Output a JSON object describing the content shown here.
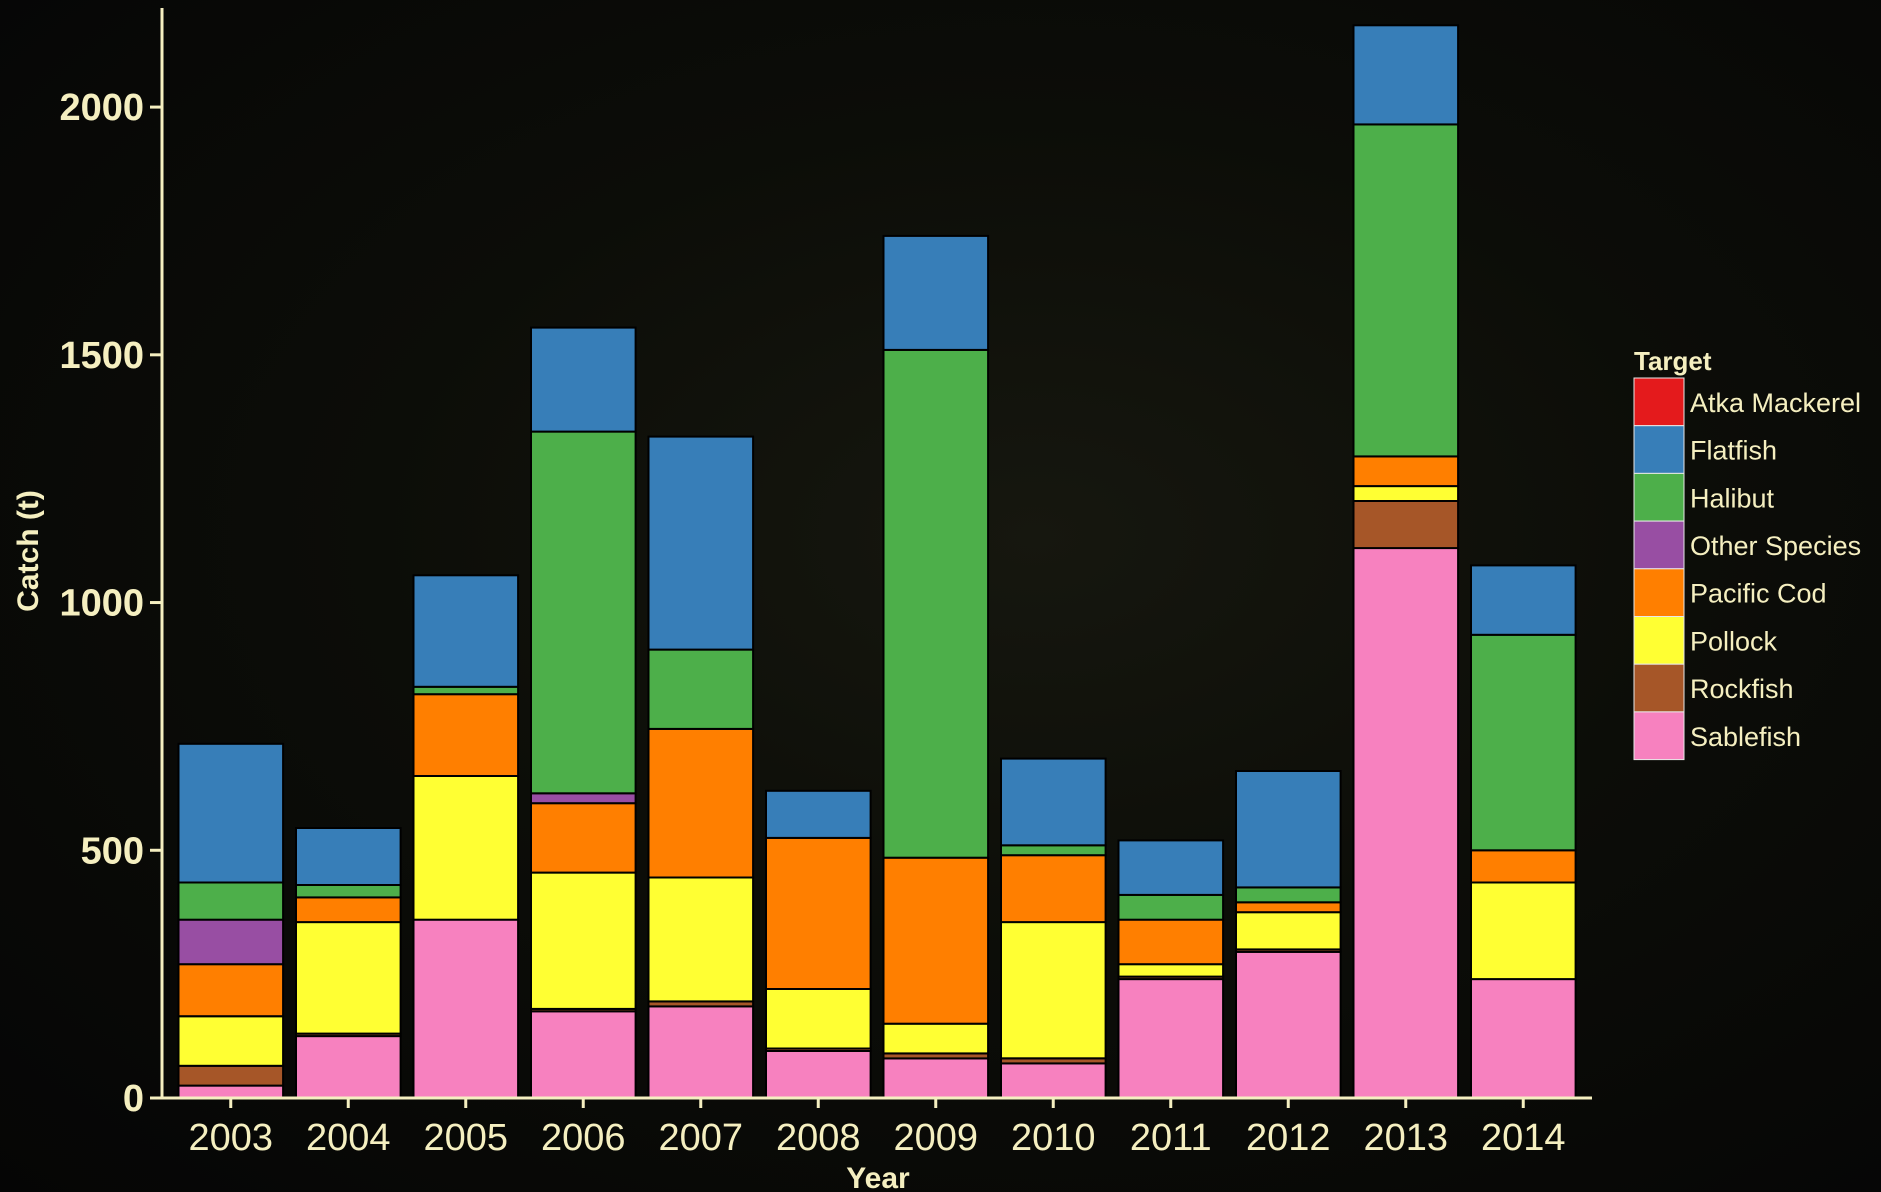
{
  "chart_data": {
    "type": "bar",
    "stacked": true,
    "title": "",
    "xlabel": "Year",
    "ylabel": "Catch (t)",
    "ylim": [
      0,
      2200
    ],
    "yticks": [
      0,
      500,
      1000,
      1500,
      2000
    ],
    "categories": [
      "2003",
      "2004",
      "2005",
      "2006",
      "2007",
      "2008",
      "2009",
      "2010",
      "2011",
      "2012",
      "2013",
      "2014"
    ],
    "legend": {
      "title": "Target",
      "position": "right"
    },
    "series": [
      {
        "name": "Sablefish",
        "color": "#f781bf",
        "values": [
          25,
          125,
          360,
          175,
          185,
          95,
          80,
          70,
          240,
          295,
          1110,
          240
        ]
      },
      {
        "name": "Rockfish",
        "color": "#a65628",
        "values": [
          40,
          5,
          0,
          5,
          10,
          5,
          10,
          10,
          5,
          5,
          95,
          0
        ]
      },
      {
        "name": "Pollock",
        "color": "#ffff33",
        "values": [
          100,
          225,
          290,
          275,
          250,
          120,
          60,
          275,
          25,
          75,
          30,
          195
        ]
      },
      {
        "name": "Pacific Cod",
        "color": "#ff7f00",
        "values": [
          105,
          50,
          165,
          140,
          300,
          305,
          335,
          135,
          90,
          20,
          60,
          65
        ]
      },
      {
        "name": "Other Species",
        "color": "#984ea3",
        "values": [
          90,
          0,
          0,
          20,
          0,
          0,
          0,
          0,
          0,
          0,
          0,
          0
        ]
      },
      {
        "name": "Halibut",
        "color": "#4daf4a",
        "values": [
          75,
          25,
          15,
          730,
          160,
          0,
          1025,
          20,
          50,
          30,
          670,
          435
        ]
      },
      {
        "name": "Flatfish",
        "color": "#377eb8",
        "values": [
          280,
          115,
          225,
          210,
          430,
          95,
          230,
          175,
          110,
          235,
          200,
          140
        ]
      },
      {
        "name": "Atka Mackerel",
        "color": "#e41a1c",
        "values": [
          0,
          0,
          0,
          0,
          0,
          0,
          0,
          0,
          0,
          0,
          0,
          0
        ]
      }
    ]
  }
}
